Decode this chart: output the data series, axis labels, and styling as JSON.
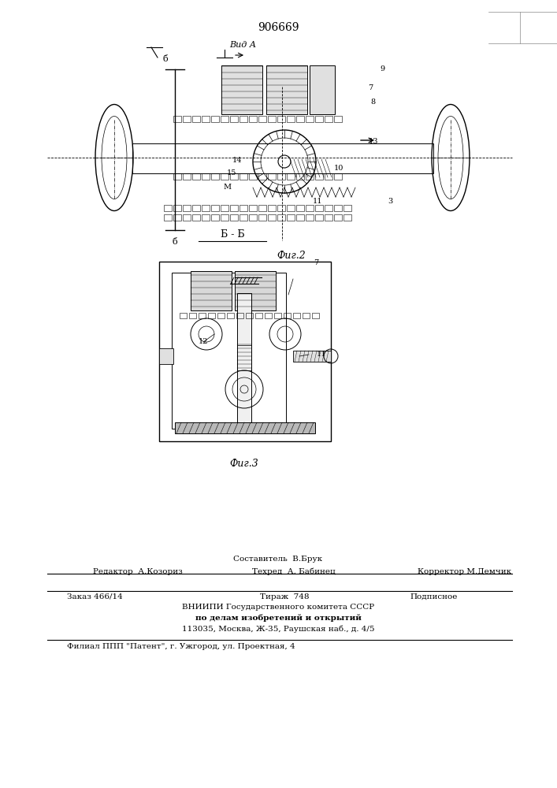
{
  "patent_number": "906669",
  "bg_color": "#ffffff",
  "line_color": "#000000",
  "footer": {
    "sostavitel": "Составитель  В.Брук",
    "editor": "Редактор  А.Козориз",
    "tekhred": "Техред  А. Бабинец",
    "korrektor": "Корректор М.Демчик",
    "zakaz": "Заказ 466/14",
    "tirazh": "Тираж  748",
    "podpisnoe": "Подписное",
    "vniipи": "ВНИИПИ Государственного комитета СССР",
    "po_delam": "по делам изобретений и открытий",
    "address": "113035, Москва, Ж-35, Раушская наб., д. 4/5",
    "filial": "Филиал ППП \"Патент\", г. Ужгород, ул. Проектная, 4"
  },
  "fig2_caption": "Фиг.2",
  "fig3_caption": "Фиг.3",
  "section_label": "Б - Б",
  "vid_A_label": "Вид А"
}
